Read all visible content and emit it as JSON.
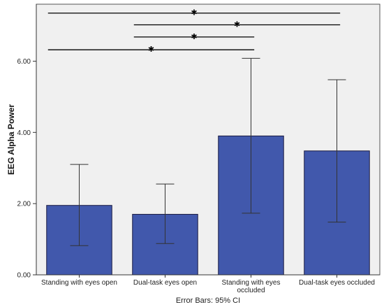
{
  "chart_data": {
    "type": "bar",
    "categories": [
      [
        "Standing with eyes open"
      ],
      [
        "Dual-task eyes open"
      ],
      [
        "Standing with eyes",
        "occluded"
      ],
      [
        "Dual-task eyes occluded"
      ]
    ],
    "values": [
      1.95,
      1.7,
      3.9,
      3.48
    ],
    "error_bars": [
      {
        "low": 0.82,
        "high": 3.1
      },
      {
        "low": 0.88,
        "high": 2.55
      },
      {
        "low": 1.73,
        "high": 6.08
      },
      {
        "low": 1.48,
        "high": 5.48
      }
    ],
    "ylabel": "EEG Alpha Power",
    "ylim": [
      0,
      7.6
    ],
    "yticks": [
      "0.00",
      "2.00",
      "4.00",
      "6.00"
    ],
    "ytick_values": [
      0,
      2,
      4,
      6
    ],
    "footnote": "Error Bars: 95% CI",
    "grid": false,
    "significance_brackets": [
      {
        "from": 0,
        "to": 3,
        "y": 7.35,
        "mark": "✱"
      },
      {
        "from": 1,
        "to": 3,
        "y": 7.02,
        "mark": "✱"
      },
      {
        "from": 1,
        "to": 2,
        "y": 6.68,
        "mark": "✱"
      },
      {
        "from": 0,
        "to": 2,
        "y": 6.32,
        "mark": "✱"
      }
    ],
    "colors": {
      "bar_fill": "#4158ac",
      "bar_stroke": "#1a1a40",
      "plot_bg": "#f0f0f0",
      "error_bar": "#333333",
      "bracket": "#000000"
    }
  }
}
